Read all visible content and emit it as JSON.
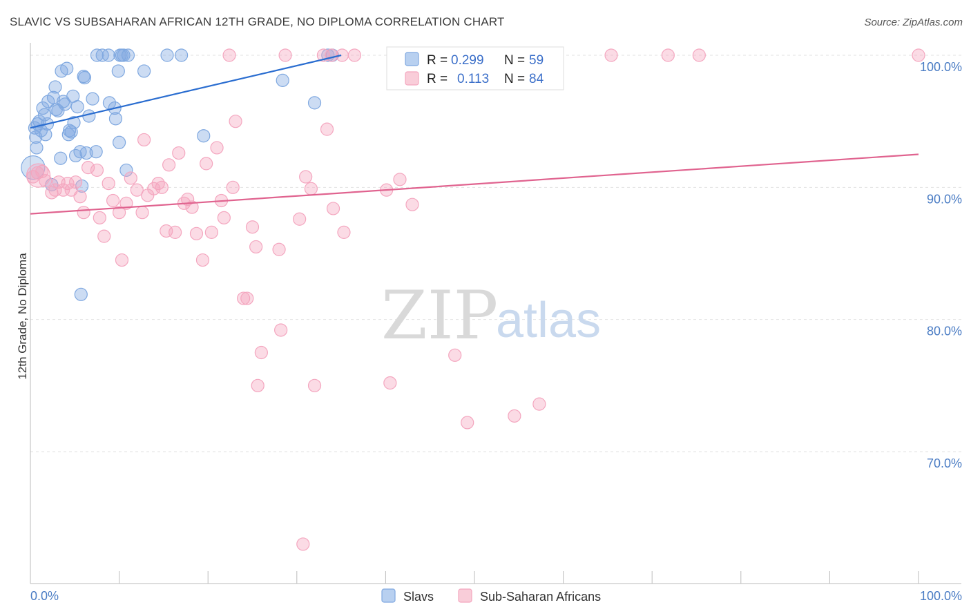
{
  "title": "SLAVIC VS SUBSAHARAN AFRICAN 12TH GRADE, NO DIPLOMA CORRELATION CHART",
  "source": "Source: ZipAtlas.com",
  "watermark": {
    "zip": "ZIP",
    "atlas": "atlas"
  },
  "chart_data": {
    "type": "scatter",
    "title": "SLAVIC VS SUBSAHARAN AFRICAN 12TH GRADE, NO DIPLOMA CORRELATION CHART",
    "xlabel": "",
    "ylabel": "12th Grade, No Diploma",
    "xlim": [
      0,
      100
    ],
    "ylim": [
      60,
      102
    ],
    "x_tick_labels": {
      "left": "0.0%",
      "right": "100.0%"
    },
    "y_ticks": [
      70,
      80,
      90,
      100
    ],
    "y_tick_labels": [
      "70.0%",
      "80.0%",
      "90.0%",
      "100.0%"
    ],
    "grid": true,
    "legend_position": "top-center",
    "series": [
      {
        "name": "Slavs",
        "color": "#7fa8e0",
        "line_color": "#2a6dd0",
        "R": "0.299",
        "N": "59",
        "trend": {
          "x": [
            0,
            35
          ],
          "y": [
            94.5,
            100.0
          ]
        },
        "points": [
          [
            0.3,
            91.5
          ],
          [
            0.5,
            94.5
          ],
          [
            0.6,
            93.8
          ],
          [
            0.7,
            93.0
          ],
          [
            0.8,
            94.8
          ],
          [
            1.0,
            95.0
          ],
          [
            1.2,
            94.3
          ],
          [
            1.4,
            96.0
          ],
          [
            1.6,
            95.5
          ],
          [
            1.7,
            94.0
          ],
          [
            1.9,
            94.8
          ],
          [
            2.0,
            96.5
          ],
          [
            2.4,
            90.2
          ],
          [
            2.6,
            96.8
          ],
          [
            2.8,
            97.6
          ],
          [
            2.9,
            95.9
          ],
          [
            3.1,
            95.8
          ],
          [
            3.4,
            92.2
          ],
          [
            3.5,
            98.8
          ],
          [
            3.7,
            96.5
          ],
          [
            3.9,
            96.3
          ],
          [
            4.1,
            99.0
          ],
          [
            4.3,
            94.0
          ],
          [
            4.4,
            94.3
          ],
          [
            4.6,
            94.2
          ],
          [
            4.8,
            96.9
          ],
          [
            4.9,
            94.9
          ],
          [
            5.1,
            92.4
          ],
          [
            5.3,
            96.1
          ],
          [
            5.6,
            92.7
          ],
          [
            5.8,
            90.1
          ],
          [
            6.0,
            98.4
          ],
          [
            6.1,
            98.3
          ],
          [
            6.3,
            92.6
          ],
          [
            6.6,
            95.4
          ],
          [
            7.0,
            96.7
          ],
          [
            7.4,
            92.7
          ],
          [
            7.5,
            100.0
          ],
          [
            8.1,
            100.0
          ],
          [
            8.8,
            100.0
          ],
          [
            8.9,
            96.4
          ],
          [
            9.5,
            96.0
          ],
          [
            9.6,
            95.2
          ],
          [
            9.9,
            98.8
          ],
          [
            10.0,
            93.4
          ],
          [
            10.1,
            100.0
          ],
          [
            10.3,
            100.0
          ],
          [
            10.5,
            100.0
          ],
          [
            10.8,
            91.3
          ],
          [
            11.0,
            100.0
          ],
          [
            12.8,
            98.8
          ],
          [
            15.4,
            100.0
          ],
          [
            17.0,
            100.0
          ],
          [
            19.5,
            93.9
          ],
          [
            28.4,
            98.1
          ],
          [
            32.0,
            96.4
          ],
          [
            33.5,
            100.0
          ],
          [
            34.0,
            100.0
          ],
          [
            5.7,
            81.9
          ]
        ]
      },
      {
        "name": "Sub-Saharan Africans",
        "color": "#f4a6bf",
        "line_color": "#e0638f",
        "R": "0.113",
        "N": "84",
        "trend": {
          "x": [
            0,
            100
          ],
          "y": [
            88.0,
            92.5
          ]
        },
        "points": [
          [
            0.3,
            90.8
          ],
          [
            0.8,
            91.1
          ],
          [
            1.3,
            91.2
          ],
          [
            1.7,
            90.5
          ],
          [
            2.4,
            89.6
          ],
          [
            2.8,
            89.8
          ],
          [
            3.2,
            90.4
          ],
          [
            3.7,
            89.8
          ],
          [
            4.2,
            90.3
          ],
          [
            4.6,
            89.8
          ],
          [
            5.1,
            90.4
          ],
          [
            5.6,
            89.3
          ],
          [
            6.0,
            88.1
          ],
          [
            6.5,
            91.5
          ],
          [
            7.5,
            91.3
          ],
          [
            7.8,
            87.7
          ],
          [
            8.3,
            86.3
          ],
          [
            8.8,
            90.3
          ],
          [
            9.3,
            89.0
          ],
          [
            10.0,
            88.1
          ],
          [
            10.3,
            84.5
          ],
          [
            10.8,
            88.8
          ],
          [
            11.3,
            90.7
          ],
          [
            12.0,
            89.8
          ],
          [
            12.6,
            88.1
          ],
          [
            12.8,
            93.6
          ],
          [
            13.2,
            89.4
          ],
          [
            13.9,
            89.9
          ],
          [
            14.4,
            90.3
          ],
          [
            14.8,
            90.0
          ],
          [
            15.3,
            86.7
          ],
          [
            15.6,
            91.7
          ],
          [
            16.3,
            86.6
          ],
          [
            16.7,
            92.6
          ],
          [
            17.3,
            88.8
          ],
          [
            17.7,
            89.1
          ],
          [
            18.2,
            88.5
          ],
          [
            18.7,
            86.5
          ],
          [
            19.4,
            84.5
          ],
          [
            19.8,
            91.8
          ],
          [
            20.4,
            86.6
          ],
          [
            21.0,
            93.0
          ],
          [
            21.5,
            89.0
          ],
          [
            21.8,
            87.7
          ],
          [
            22.4,
            100.0
          ],
          [
            22.8,
            90.0
          ],
          [
            23.1,
            95.0
          ],
          [
            24.0,
            81.6
          ],
          [
            24.4,
            81.6
          ],
          [
            25.0,
            87.0
          ],
          [
            25.4,
            85.5
          ],
          [
            25.6,
            75.0
          ],
          [
            26.0,
            77.5
          ],
          [
            28.0,
            85.3
          ],
          [
            28.2,
            79.2
          ],
          [
            28.7,
            100.0
          ],
          [
            30.3,
            87.6
          ],
          [
            30.7,
            63.0
          ],
          [
            31.0,
            90.8
          ],
          [
            31.6,
            89.9
          ],
          [
            32.0,
            75.0
          ],
          [
            33.0,
            100.0
          ],
          [
            33.4,
            94.4
          ],
          [
            33.9,
            100.0
          ],
          [
            34.1,
            88.4
          ],
          [
            35.1,
            100.0
          ],
          [
            35.3,
            86.6
          ],
          [
            36.5,
            100.0
          ],
          [
            40.1,
            89.8
          ],
          [
            40.5,
            75.2
          ],
          [
            41.6,
            90.6
          ],
          [
            43.0,
            88.7
          ],
          [
            44.0,
            100.0
          ],
          [
            47.2,
            100.0
          ],
          [
            47.8,
            77.3
          ],
          [
            49.2,
            72.2
          ],
          [
            53.0,
            99.0
          ],
          [
            54.5,
            72.7
          ],
          [
            57.3,
            73.6
          ],
          [
            65.4,
            100.0
          ],
          [
            71.8,
            100.0
          ],
          [
            75.3,
            100.0
          ],
          [
            100.0,
            100.0
          ],
          [
            0.9,
            90.9
          ]
        ]
      }
    ]
  },
  "legend": {
    "r_label": "R =",
    "n_label": "N =",
    "series1": {
      "r": "0.299",
      "n": "59"
    },
    "series2": {
      "r": "0.113",
      "n": "84"
    }
  },
  "bottom_legend": [
    "Slavs",
    "Sub-Saharan Africans"
  ]
}
